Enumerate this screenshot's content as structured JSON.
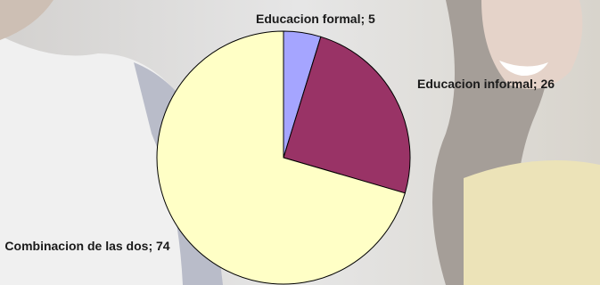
{
  "chart_data": {
    "type": "pie",
    "slices": [
      {
        "label": "Educacion formal",
        "value": 5,
        "color": "#a5a5ff"
      },
      {
        "label": "Educacion informal",
        "value": 26,
        "color": "#993366"
      },
      {
        "label": "Combinacion de las dos",
        "value": 74,
        "color": "#ffffc6"
      }
    ],
    "data_labels": [
      "Educacion formal; 5",
      "Educacion informal; 26",
      "Combinacion de las dos; 74"
    ]
  }
}
